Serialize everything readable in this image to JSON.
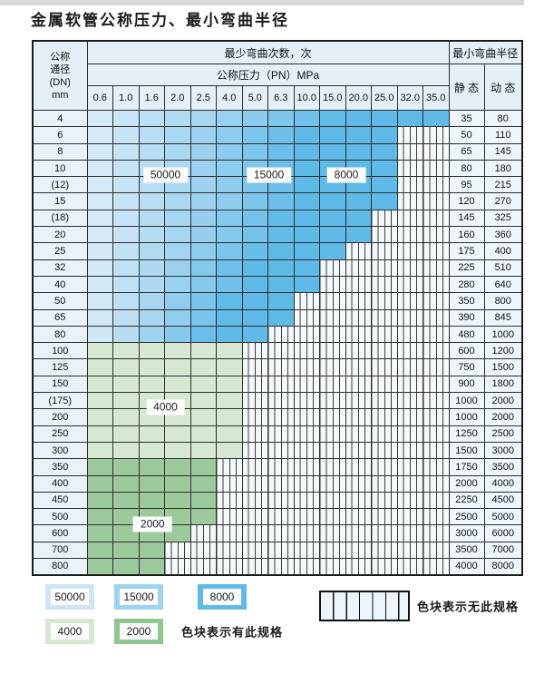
{
  "title": "金属软管公称压力、最小弯曲半径",
  "header": {
    "dn_lines": "公称\n通径\n(DN)\nmm",
    "cycles": "最少弯曲次数，次",
    "pressure": "公称压力（PN）MPa",
    "radius": "最小弯曲半径",
    "static": "静 态",
    "dynamic": "动 态"
  },
  "colors": {
    "blue_light": "#dbedf8",
    "blue_mid": "#a5d5f0",
    "blue_sat": "#5fbae8",
    "green_4000": "#d6e8d2",
    "green_2000": "#9dca9c",
    "header_bg": "#e4eff7",
    "hatch_bg": "#f4f9fc"
  },
  "zone_labels": [
    {
      "text": "50000",
      "col": 2,
      "cols": 2,
      "row": 3,
      "rows": 2
    },
    {
      "text": "15000",
      "col": 6,
      "cols": 2,
      "row": 3,
      "rows": 2
    },
    {
      "text": "8000",
      "col": 9,
      "cols": 2,
      "row": 3,
      "rows": 2
    },
    {
      "text": "4000",
      "col": 2,
      "cols": 2,
      "row": 17,
      "rows": 2
    },
    {
      "text": "2000",
      "col": 1,
      "cols": 3,
      "row": 24,
      "rows": 2
    }
  ],
  "legend": {
    "swatches": [
      {
        "label": "50000",
        "color": "#cfe4f5"
      },
      {
        "label": "15000",
        "color": "#9dd2f0"
      },
      {
        "label": "8000",
        "color": "#5fbae8"
      },
      {
        "label": "4000",
        "color": "#d6e8d2"
      },
      {
        "label": "2000",
        "color": "#90c691"
      }
    ],
    "has_spec_note": "色块表示有此规格",
    "no_spec_note": "色块表示无此规格"
  },
  "chart_data": {
    "type": "table",
    "title": "金属软管公称压力、最小弯曲半径",
    "column_groups": [
      "公称通径(DN) mm",
      "最少弯曲次数，次 / 公称压力（PN）MPa",
      "最小弯曲半径：静态 / 动态"
    ],
    "pn_columns_MPa": [
      0.6,
      1.0,
      1.6,
      2.0,
      2.5,
      4.0,
      5.0,
      6.3,
      10.0,
      15.0,
      20.0,
      25.0,
      32.0,
      35.0
    ],
    "cycle_zone_legend": {
      "50000": "light blue",
      "15000": "medium blue",
      "8000": "dark blue",
      "4000": "light green",
      "2000": "medium green"
    },
    "rows": [
      {
        "dn": "4",
        "max_pn": 35.0,
        "zone": "blue",
        "static": 35,
        "dynamic": 80
      },
      {
        "dn": "6",
        "max_pn": 25.0,
        "zone": "blue",
        "static": 50,
        "dynamic": 110
      },
      {
        "dn": "8",
        "max_pn": 25.0,
        "zone": "blue",
        "static": 65,
        "dynamic": 145
      },
      {
        "dn": "10",
        "max_pn": 25.0,
        "zone": "blue",
        "static": 80,
        "dynamic": 180
      },
      {
        "dn": "(12)",
        "max_pn": 25.0,
        "zone": "blue",
        "static": 95,
        "dynamic": 215
      },
      {
        "dn": "15",
        "max_pn": 25.0,
        "zone": "blue",
        "static": 120,
        "dynamic": 270
      },
      {
        "dn": "(18)",
        "max_pn": 20.0,
        "zone": "blue",
        "static": 145,
        "dynamic": 325
      },
      {
        "dn": "20",
        "max_pn": 20.0,
        "zone": "blue",
        "static": 160,
        "dynamic": 360
      },
      {
        "dn": "25",
        "max_pn": 15.0,
        "zone": "blue",
        "static": 175,
        "dynamic": 400
      },
      {
        "dn": "32",
        "max_pn": 10.0,
        "zone": "blue",
        "static": 225,
        "dynamic": 510
      },
      {
        "dn": "40",
        "max_pn": 10.0,
        "zone": "blue",
        "static": 280,
        "dynamic": 640
      },
      {
        "dn": "50",
        "max_pn": 6.3,
        "zone": "blue",
        "static": 350,
        "dynamic": 800
      },
      {
        "dn": "65",
        "max_pn": 6.3,
        "zone": "blue",
        "static": 390,
        "dynamic": 845
      },
      {
        "dn": "80",
        "max_pn": 5.0,
        "zone": "blue",
        "static": 480,
        "dynamic": 1000
      },
      {
        "dn": "100",
        "max_pn": 4.0,
        "zone": "green-4000",
        "static": 600,
        "dynamic": 1200
      },
      {
        "dn": "125",
        "max_pn": 4.0,
        "zone": "green-4000",
        "static": 750,
        "dynamic": 1500
      },
      {
        "dn": "150",
        "max_pn": 4.0,
        "zone": "green-4000",
        "static": 900,
        "dynamic": 1800
      },
      {
        "dn": "(175)",
        "max_pn": 4.0,
        "zone": "green-4000",
        "static": 1000,
        "dynamic": 2000
      },
      {
        "dn": "200",
        "max_pn": 4.0,
        "zone": "green-4000",
        "static": 1000,
        "dynamic": 2000
      },
      {
        "dn": "250",
        "max_pn": 4.0,
        "zone": "green-4000",
        "static": 1250,
        "dynamic": 2500
      },
      {
        "dn": "300",
        "max_pn": 4.0,
        "zone": "green-4000",
        "static": 1500,
        "dynamic": 3000
      },
      {
        "dn": "350",
        "max_pn": 2.5,
        "zone": "green-2000",
        "static": 1750,
        "dynamic": 3500
      },
      {
        "dn": "400",
        "max_pn": 2.5,
        "zone": "green-2000",
        "static": 2000,
        "dynamic": 4000
      },
      {
        "dn": "450",
        "max_pn": 2.5,
        "zone": "green-2000",
        "static": 2250,
        "dynamic": 4500
      },
      {
        "dn": "500",
        "max_pn": 2.5,
        "zone": "green-2000",
        "static": 2500,
        "dynamic": 5000
      },
      {
        "dn": "600",
        "max_pn": 2.0,
        "zone": "green-2000",
        "static": 3000,
        "dynamic": 6000
      },
      {
        "dn": "700",
        "max_pn": 1.6,
        "zone": "green-2000",
        "static": 3500,
        "dynamic": 7000
      },
      {
        "dn": "800",
        "max_pn": 1.6,
        "zone": "green-2000",
        "static": 4000,
        "dynamic": 8000
      }
    ]
  }
}
